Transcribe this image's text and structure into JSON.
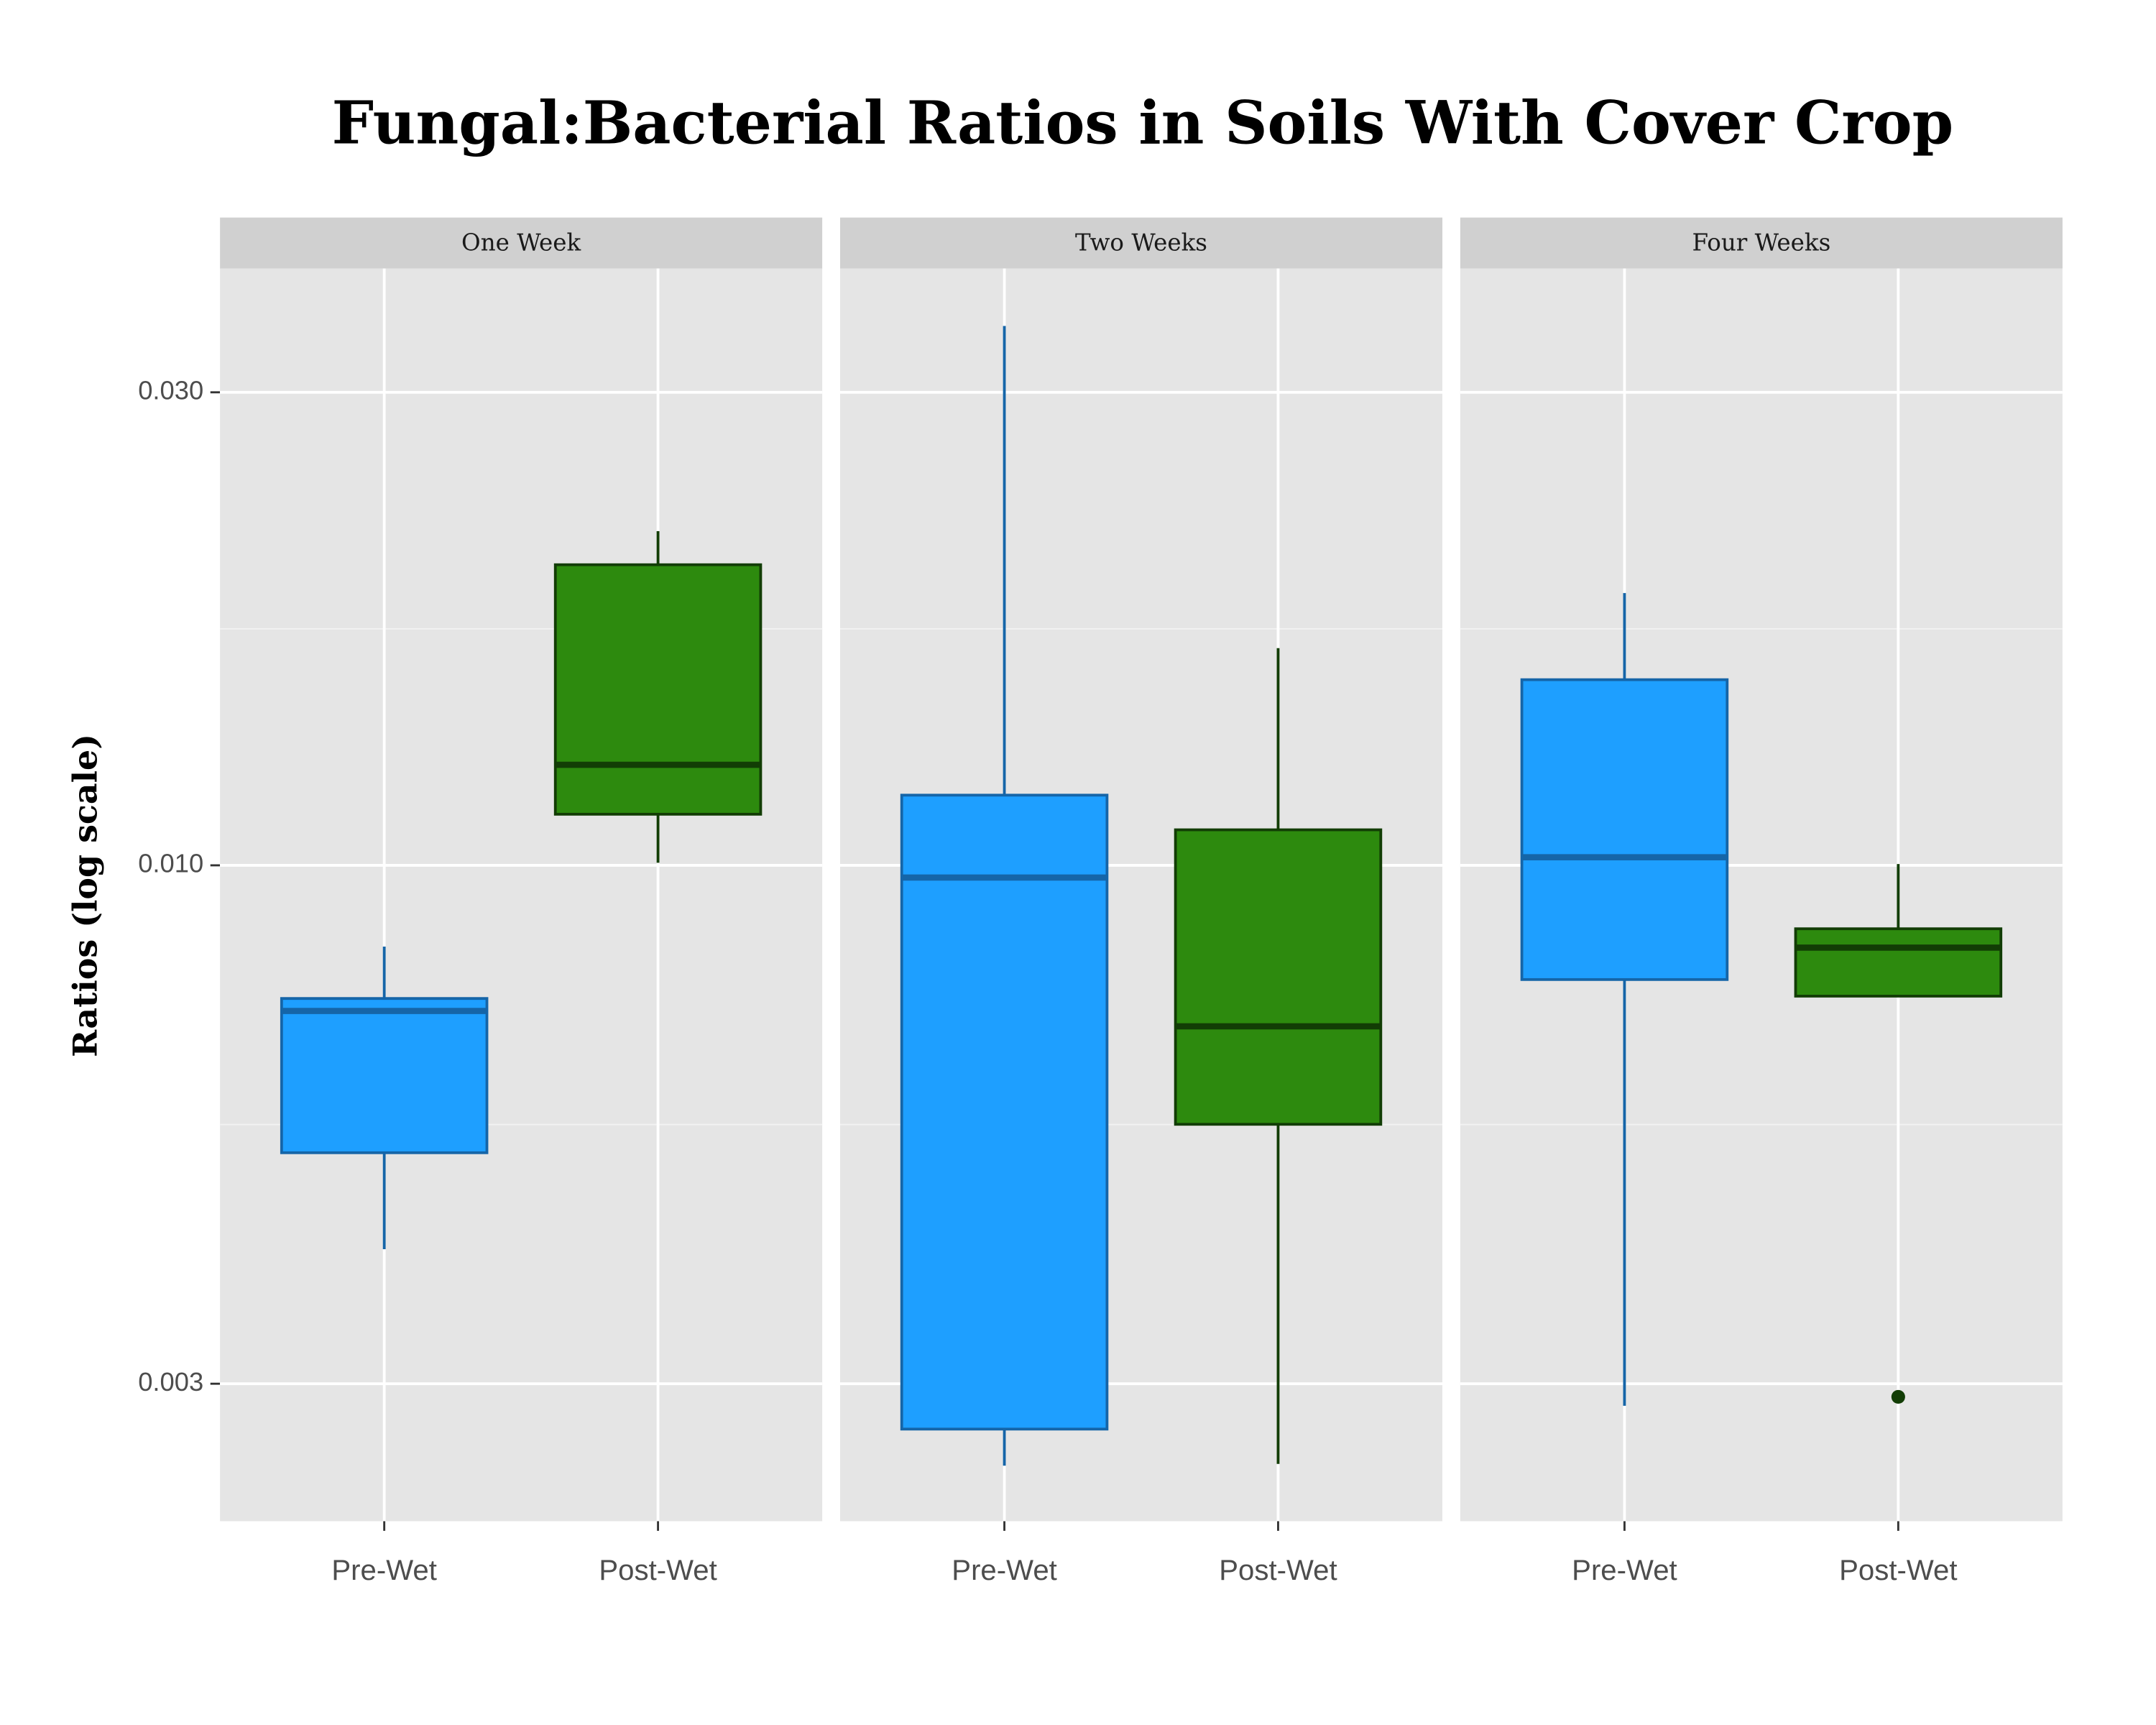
{
  "chart_data": {
    "type": "box",
    "title": "Fungal:Bacterial Ratios in Soils With Cover Crop",
    "y_label": "Ratios (log scale)",
    "log_scale": true,
    "grid": true,
    "ylim": [
      0.00218,
      0.04
    ],
    "yticks": [
      {
        "value": 0.003,
        "label": "0.003"
      },
      {
        "value": 0.01,
        "label": "0.010"
      },
      {
        "value": 0.03,
        "label": "0.030"
      }
    ],
    "facets": [
      {
        "title": "One Week",
        "boxes": [
          {
            "category": "Pre-Wet",
            "fill": "#1e9fff",
            "edge": "#1565a8",
            "whisker_low": 0.0041,
            "q1": 0.00513,
            "median": 0.00713,
            "q3": 0.00734,
            "whisker_high": 0.00828,
            "outliers": []
          },
          {
            "category": "Post-Wet",
            "fill": "#2d8a0e",
            "edge": "#123d05",
            "whisker_low": 0.01006,
            "q1": 0.01126,
            "median": 0.01263,
            "q3": 0.0201,
            "whisker_high": 0.02173,
            "outliers": []
          }
        ]
      },
      {
        "title": "Two Weeks",
        "boxes": [
          {
            "category": "Pre-Wet",
            "fill": "#1e9fff",
            "edge": "#1565a8",
            "whisker_low": 0.00248,
            "q1": 0.0027,
            "median": 0.00972,
            "q3": 0.01177,
            "whisker_high": 0.035,
            "outliers": []
          },
          {
            "category": "Post-Wet",
            "fill": "#2d8a0e",
            "edge": "#123d05",
            "whisker_low": 0.00249,
            "q1": 0.00548,
            "median": 0.00688,
            "q3": 0.01086,
            "whisker_high": 0.01656,
            "outliers": []
          }
        ]
      },
      {
        "title": "Four Weeks",
        "boxes": [
          {
            "category": "Pre-Wet",
            "fill": "#1e9fff",
            "edge": "#1565a8",
            "whisker_low": 0.00285,
            "q1": 0.00767,
            "median": 0.01019,
            "q3": 0.01539,
            "whisker_high": 0.01882,
            "outliers": []
          },
          {
            "category": "Post-Wet",
            "fill": "#2d8a0e",
            "edge": "#123d05",
            "whisker_low": 0.00738,
            "q1": 0.00738,
            "median": 0.00826,
            "q3": 0.00863,
            "whisker_high": 0.01003,
            "outliers": [
              0.00291
            ]
          }
        ]
      }
    ]
  }
}
